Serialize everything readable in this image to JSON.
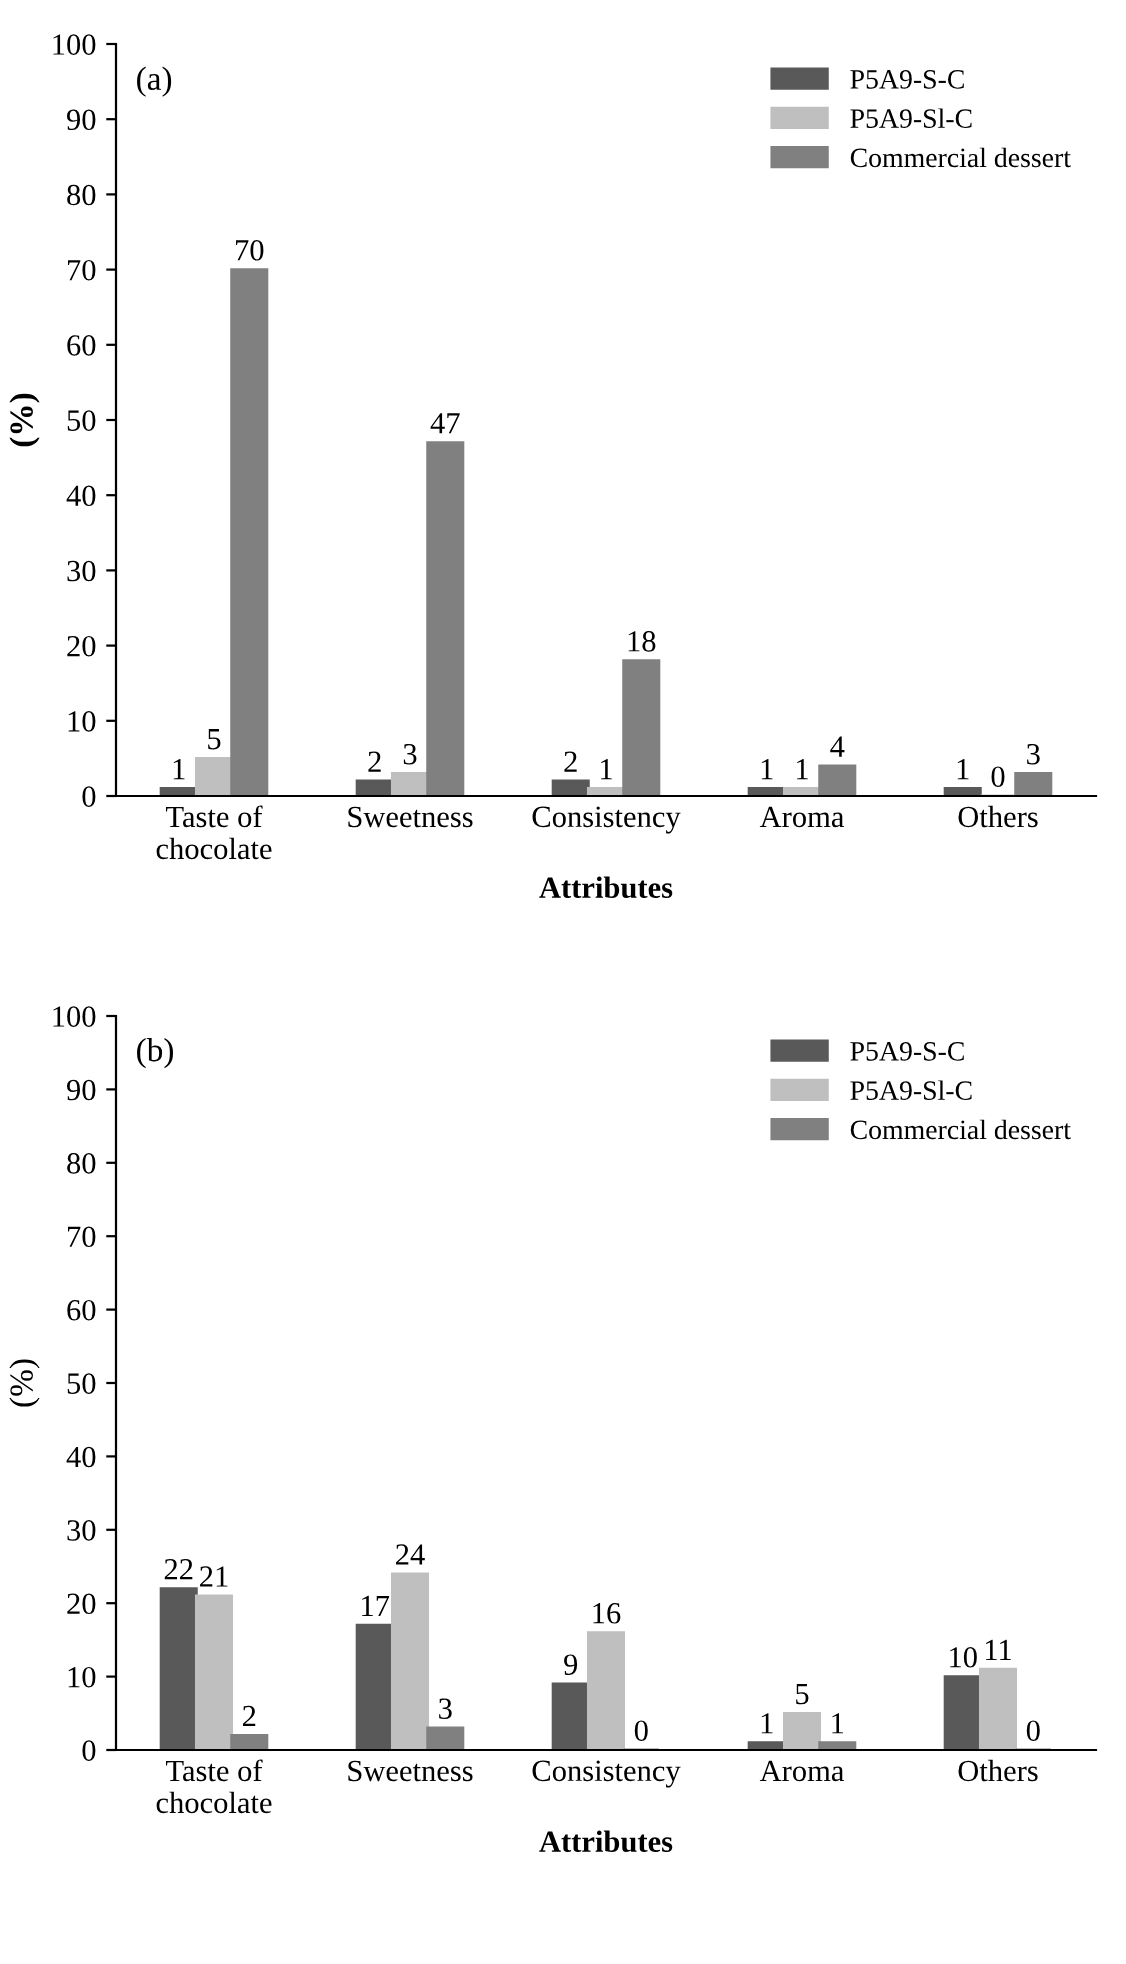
{
  "chart_data": [
    {
      "type": "bar",
      "annotations": [
        "(a)"
      ],
      "xlabel": "Attributes",
      "ylabel": "(%)",
      "categories": [
        "Taste of\nchocolate",
        "Sweetness",
        "Consistency",
        "Aroma",
        "Others"
      ],
      "series": [
        {
          "name": "P5A9-S-C",
          "color": "#595959",
          "values": [
            1,
            2,
            2,
            1,
            1
          ]
        },
        {
          "name": "P5A9-Sl-C",
          "color": "#bfbfbf",
          "values": [
            5,
            3,
            1,
            1,
            0
          ]
        },
        {
          "name": "Commercial dessert",
          "color": "#808080",
          "values": [
            70,
            47,
            18,
            4,
            3
          ]
        }
      ],
      "ylim": [
        0,
        100
      ],
      "yticks": [
        0,
        10,
        20,
        30,
        40,
        50,
        60,
        70,
        80,
        90,
        100
      ],
      "data_labels": true,
      "legend": "top right",
      "grid": false
    },
    {
      "type": "bar",
      "annotations": [
        "(b)"
      ],
      "xlabel": "Attributes",
      "ylabel": "(%)",
      "categories": [
        "Taste of\nchocolate",
        "Sweetness",
        "Consistency",
        "Aroma",
        "Others"
      ],
      "series": [
        {
          "name": "P5A9-S-C",
          "color": "#595959",
          "values": [
            22,
            17,
            9,
            1,
            10
          ]
        },
        {
          "name": "P5A9-Sl-C",
          "color": "#bfbfbf",
          "values": [
            21,
            24,
            16,
            5,
            11
          ]
        },
        {
          "name": "Commercial dessert",
          "color": "#808080",
          "values": [
            2,
            3,
            0,
            1,
            0
          ]
        }
      ],
      "ylim": [
        0,
        100
      ],
      "yticks": [
        0,
        10,
        20,
        30,
        40,
        50,
        60,
        70,
        80,
        90,
        100
      ],
      "data_labels": true,
      "legend": "top right",
      "grid": false
    }
  ]
}
